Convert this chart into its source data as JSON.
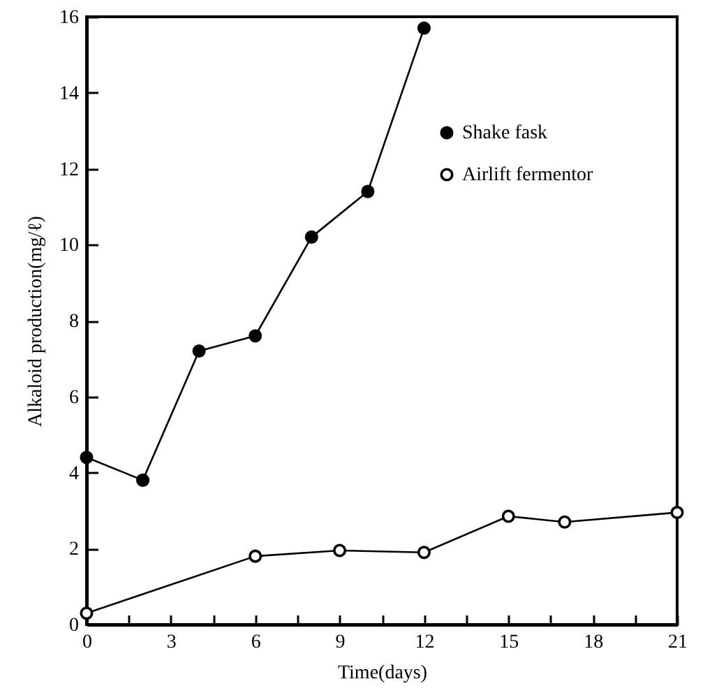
{
  "chart_data": {
    "type": "line",
    "xlabel": "Time(days)",
    "ylabel": "Alkaloid production(mg/ℓ)",
    "xlim": [
      0,
      21
    ],
    "ylim": [
      0,
      16
    ],
    "xticks": [
      0,
      {
        "value": 1.5,
        "label": null
      },
      3,
      {
        "value": 4.5,
        "label": null
      },
      6,
      {
        "value": 7.5,
        "label": null
      },
      9,
      {
        "value": 10.5,
        "label": null
      },
      12,
      {
        "value": 13.5,
        "label": null
      },
      15,
      {
        "value": 16.5,
        "label": null
      },
      18,
      {
        "value": 19.5,
        "label": null
      },
      21
    ],
    "yticks": [
      0,
      2,
      4,
      6,
      8,
      10,
      12,
      14,
      16
    ],
    "grid": false,
    "legend": "top right",
    "marker": "circle",
    "line_style": "solid",
    "series": [
      {
        "name": "Shake fask",
        "color": "#000000",
        "x": [
          0,
          2,
          4,
          6,
          8,
          10,
          12
        ],
        "values": [
          4.4,
          3.8,
          7.2,
          7.6,
          10.2,
          11.4,
          15.7
        ]
      },
      {
        "name": "Airlift fermentor",
        "color": "#000000",
        "x": [
          0,
          6,
          9,
          12,
          15,
          17,
          21
        ],
        "values": [
          0.3,
          1.8,
          1.95,
          1.9,
          2.85,
          2.7,
          2.95
        ]
      }
    ]
  }
}
